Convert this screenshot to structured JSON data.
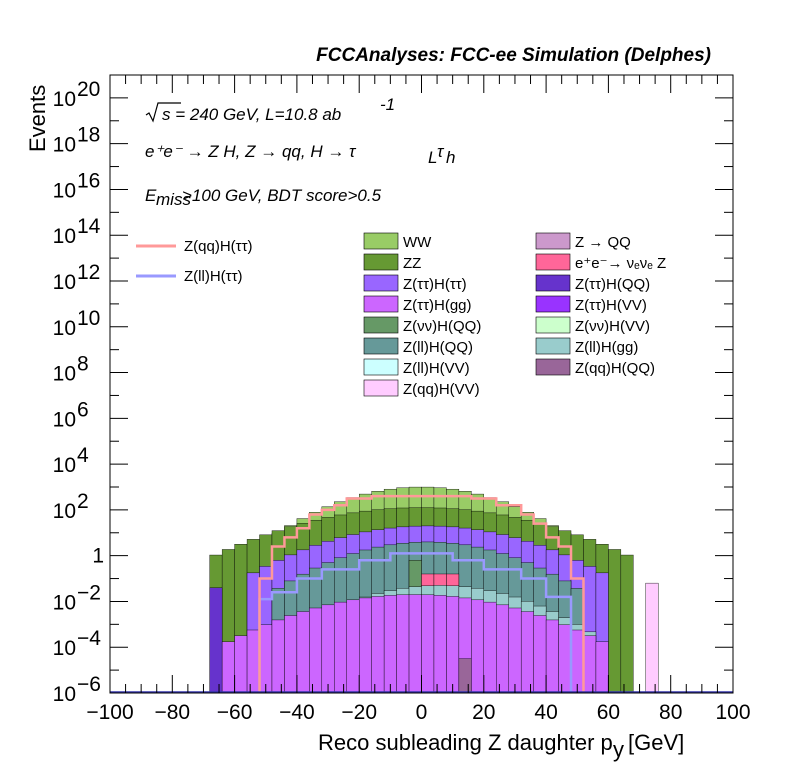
{
  "chart_data": {
    "type": "bar",
    "title": "FCCAnalyses: FCC-ee Simulation (Delphes)",
    "xlabel": "Reco subleading Z daughter p",
    "xlabel_sub": "y",
    "xlabel_unit": "[GeV]",
    "ylabel": "Events",
    "log_y": true,
    "xlim": [
      -100,
      100
    ],
    "ylim_exponent": [
      -6,
      21
    ],
    "bin_width": 4,
    "x_tick_labels": [
      "−100",
      "−80",
      "−60",
      "−40",
      "−20",
      "0",
      "20",
      "40",
      "60",
      "80",
      "100"
    ],
    "x_tick_values": [
      -100,
      -80,
      -60,
      -40,
      -20,
      0,
      20,
      40,
      60,
      80,
      100
    ],
    "y_tick_labels": [
      {
        "text": "10",
        "sup": "20",
        "exp": 20
      },
      {
        "text": "10",
        "sup": "18",
        "exp": 18
      },
      {
        "text": "10",
        "sup": "16",
        "exp": 16
      },
      {
        "text": "10",
        "sup": "14",
        "exp": 14
      },
      {
        "text": "10",
        "sup": "12",
        "exp": 12
      },
      {
        "text": "10",
        "sup": "10",
        "exp": 10
      },
      {
        "text": "10",
        "sup": "8",
        "exp": 8
      },
      {
        "text": "10",
        "sup": "6",
        "exp": 6
      },
      {
        "text": "10",
        "sup": "4",
        "exp": 4
      },
      {
        "text": "10",
        "sup": "2",
        "exp": 2
      },
      {
        "text": "1",
        "sup": "",
        "exp": 0
      },
      {
        "text": "10",
        "sup": "−2",
        "exp": -2
      },
      {
        "text": "10",
        "sup": "−4",
        "exp": -4
      },
      {
        "text": "10",
        "sup": "−6",
        "exp": -6
      }
    ],
    "annotations": {
      "sqrt_s": "s = 240 GeV, L=10.8 ab",
      "lumi_sup": "-1",
      "process": "e⁺e⁻ → Z H, Z  → qq, H  → τ",
      "process_sub1": "L",
      "process_tau2": "τ",
      "process_sub2": "h",
      "cut_E": "E",
      "cut_sub": "miss",
      "cut_rest": ">100 GeV, BDT score>0.5"
    },
    "legend_lines": [
      {
        "name": "Z(qq)H(ττ)",
        "color": "#ff9999"
      },
      {
        "name": "Z(ll)H(ττ)",
        "color": "#9999ff"
      }
    ],
    "legend_boxes_col1": [
      {
        "name": "WW",
        "color": "#99cc66"
      },
      {
        "name": "ZZ",
        "color": "#669933"
      },
      {
        "name": "Z(ττ)H(ττ)",
        "color": "#9966ff"
      },
      {
        "name": "Z(ττ)H(gg)",
        "color": "#cc66ff"
      },
      {
        "name": "Z(νν)H(QQ)",
        "color": "#669966"
      },
      {
        "name": "Z(ll)H(QQ)",
        "color": "#669999"
      },
      {
        "name": "Z(ll)H(VV)",
        "color": "#ccffff"
      },
      {
        "name": "Z(qq)H(VV)",
        "color": "#ffccff"
      }
    ],
    "legend_boxes_col2": [
      {
        "name": "Z → QQ",
        "color": "#cc99cc"
      },
      {
        "name": "e⁺e⁻→ νₑνₑ Z",
        "color": "#ff6699"
      },
      {
        "name": "Z(ττ)H(QQ)",
        "color": "#6633cc"
      },
      {
        "name": "Z(ττ)H(VV)",
        "color": "#9933ff"
      },
      {
        "name": "Z(νν)H(VV)",
        "color": "#ccffcc"
      },
      {
        "name": "Z(ll)H(gg)",
        "color": "#99cccc"
      },
      {
        "name": "Z(qq)H(QQ)",
        "color": "#996699"
      }
    ],
    "stack_layers_log10_tops": [
      {
        "name": "Z(ll)H(gg)",
        "color": "#99cccc",
        "x_range": [
          -44,
          56
        ],
        "level_log10": -1.3
      },
      {
        "name": "Z(νν)H(QQ)",
        "color": "#669966",
        "x_range": [
          -4,
          0
        ],
        "level_log10": -0.2
      },
      {
        "name": "e⁺e⁻→ νₑνₑ Z",
        "color": "#ff6699",
        "x_range": [
          0,
          12
        ],
        "level_log10": -0.8
      },
      {
        "name": "Z(qq)H(QQ)",
        "color": "#996699",
        "x_range": [
          12,
          16
        ],
        "level_log10": -4.5
      },
      {
        "name": "Z(ττ)H(gg)",
        "color": "#cc66ff",
        "x_range": [
          -64,
          60
        ],
        "level_log10": -1.7
      },
      {
        "name": "Z(ττ)H(QQ)",
        "color": "#6633cc",
        "x_range": [
          -68,
          -64
        ],
        "level_log10": -1.4
      },
      {
        "name": "Z(ll)H(QQ)",
        "color": "#669999",
        "x_range": [
          -48,
          52
        ],
        "level_log10": 0.6
      },
      {
        "name": "Z(ττ)H(ττ)",
        "color": "#9966ff",
        "x_range": [
          -56,
          60
        ],
        "level_log10": 1.3
      },
      {
        "name": "ZZ",
        "color": "#669933",
        "x_range": [
          -68,
          68
        ],
        "level_log10": 2.1
      },
      {
        "name": "WW",
        "color": "#99cc66",
        "x_range": [
          -48,
          48
        ],
        "level_log10": 3.0
      },
      {
        "name": "Z(qq)H(VV)",
        "color": "#ffccff",
        "x_range": [
          72,
          76
        ],
        "level_log10": -1.2
      }
    ],
    "signal_Zqq_log10": [
      {
        "x": [
          -52,
          -48
        ],
        "y": -1.0
      },
      {
        "x": [
          -48,
          -44
        ],
        "y": 0.4
      },
      {
        "x": [
          -44,
          -40
        ],
        "y": 0.8
      },
      {
        "x": [
          -40,
          -36
        ],
        "y": 1.2
      },
      {
        "x": [
          -36,
          -32
        ],
        "y": 1.8
      },
      {
        "x": [
          -32,
          -28
        ],
        "y": 2.0
      },
      {
        "x": [
          -28,
          -24
        ],
        "y": 2.2
      },
      {
        "x": [
          -24,
          -16
        ],
        "y": 2.5
      },
      {
        "x": [
          -16,
          16
        ],
        "y": 2.6
      },
      {
        "x": [
          16,
          24
        ],
        "y": 2.5
      },
      {
        "x": [
          24,
          32
        ],
        "y": 2.2
      },
      {
        "x": [
          32,
          36
        ],
        "y": 1.8
      },
      {
        "x": [
          36,
          40
        ],
        "y": 1.4
      },
      {
        "x": [
          40,
          44
        ],
        "y": 0.8
      },
      {
        "x": [
          44,
          48
        ],
        "y": 0.4
      },
      {
        "x": [
          48,
          52
        ],
        "y": -1.0
      }
    ],
    "signal_Zll_log10": [
      {
        "x": [
          -52,
          -48
        ],
        "y": -1.9
      },
      {
        "x": [
          -48,
          -40
        ],
        "y": -1.6
      },
      {
        "x": [
          -40,
          -32
        ],
        "y": -1.0
      },
      {
        "x": [
          -32,
          -20
        ],
        "y": -0.6
      },
      {
        "x": [
          -20,
          -10
        ],
        "y": -0.2
      },
      {
        "x": [
          -10,
          10
        ],
        "y": 0.1
      },
      {
        "x": [
          10,
          20
        ],
        "y": -0.2
      },
      {
        "x": [
          20,
          32
        ],
        "y": -0.6
      },
      {
        "x": [
          32,
          40
        ],
        "y": -1.0
      },
      {
        "x": [
          40,
          48
        ],
        "y": -1.8
      }
    ]
  }
}
